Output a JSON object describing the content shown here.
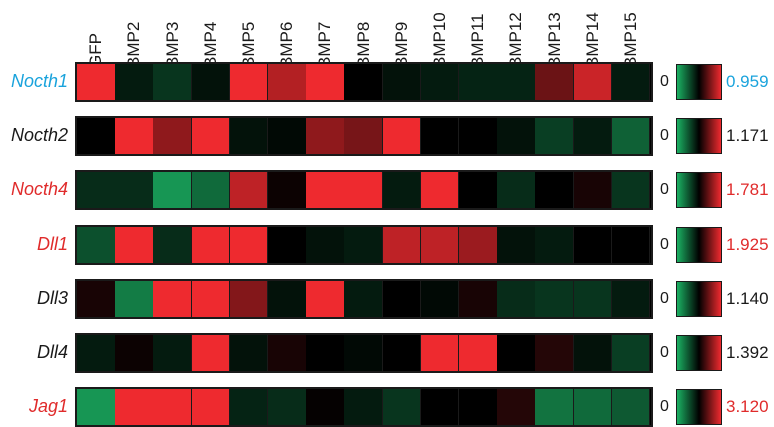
{
  "chart_data": {
    "type": "heatmap",
    "columns": [
      "GFP",
      "BMP2",
      "BMP3",
      "BMP4",
      "BMP5",
      "BMP6",
      "BMP7",
      "BMP8",
      "BMP9",
      "BMP10",
      "BMP11",
      "BMP12",
      "BMP13",
      "BMP14",
      "BMP15"
    ],
    "scale_min_label": "0",
    "colors": {
      "up": "#ee2a2f",
      "down": "#1bb163",
      "mid": "#000000",
      "label_blue": "#1aa3dc",
      "label_red": "#e02b2b",
      "label_black": "#1a1a1a"
    },
    "rows": [
      {
        "gene": "Nocth1",
        "max": "0.959",
        "label_color": "label_blue",
        "values": [
          1.0,
          -0.15,
          -0.3,
          -0.1,
          1.0,
          0.75,
          1.0,
          0.0,
          -0.1,
          -0.15,
          -0.2,
          -0.2,
          0.45,
          0.85,
          -0.15
        ]
      },
      {
        "gene": "Nocth2",
        "max": "1.171",
        "label_color": "label_black",
        "values": [
          0.0,
          1.0,
          0.6,
          1.0,
          -0.1,
          -0.05,
          0.6,
          0.5,
          1.0,
          0.0,
          0.0,
          -0.1,
          -0.35,
          -0.15,
          -0.55
        ]
      },
      {
        "gene": "Nocth4",
        "max": "1.781",
        "label_color": "label_red",
        "values": [
          -0.25,
          -0.25,
          -0.85,
          -0.6,
          0.8,
          0.05,
          1.0,
          1.0,
          -0.15,
          1.0,
          0.0,
          -0.25,
          0.0,
          0.1,
          -0.3
        ]
      },
      {
        "gene": "Dll1",
        "max": "1.925",
        "label_color": "label_red",
        "values": [
          -0.45,
          1.0,
          -0.25,
          1.0,
          1.0,
          0.0,
          -0.1,
          -0.15,
          0.8,
          0.8,
          0.65,
          -0.1,
          -0.15,
          0.0,
          0.0
        ]
      },
      {
        "gene": "Dll3",
        "max": "1.140",
        "label_color": "label_black",
        "values": [
          0.1,
          -0.7,
          1.0,
          1.0,
          0.55,
          -0.1,
          1.0,
          -0.15,
          0.0,
          -0.05,
          0.1,
          -0.25,
          -0.3,
          -0.3,
          -0.15
        ]
      },
      {
        "gene": "Dll4",
        "max": "1.392",
        "label_color": "label_black",
        "values": [
          -0.15,
          0.05,
          -0.15,
          1.0,
          -0.1,
          0.1,
          0.0,
          -0.05,
          0.0,
          1.0,
          1.0,
          0.0,
          0.15,
          -0.1,
          -0.35
        ]
      },
      {
        "gene": "Jag1",
        "max": "3.120",
        "label_color": "label_red",
        "values": [
          -0.85,
          1.0,
          1.0,
          1.0,
          -0.2,
          -0.25,
          0.02,
          -0.15,
          -0.3,
          0.0,
          0.0,
          0.15,
          -0.65,
          -0.6,
          -0.5
        ]
      }
    ]
  }
}
